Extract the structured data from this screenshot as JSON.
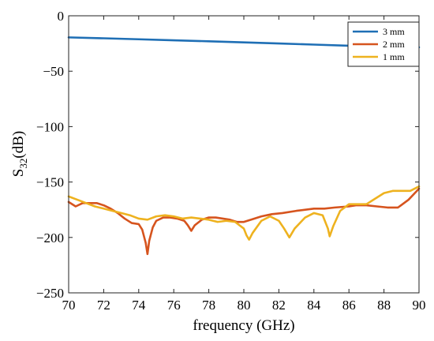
{
  "chart_data": {
    "type": "line",
    "title": "",
    "xlabel": "frequency (GHz)",
    "ylabel_main": "S",
    "ylabel_sub": "32",
    "ylabel_tail": "(dB)",
    "xlim": [
      70,
      90
    ],
    "ylim": [
      -250,
      0
    ],
    "xticks": [
      70,
      72,
      74,
      76,
      78,
      80,
      82,
      84,
      86,
      88,
      90
    ],
    "yticks": [
      0,
      -50,
      -100,
      -150,
      -200,
      -250
    ],
    "ytick_labels": [
      "0",
      "−50",
      "−100",
      "−150",
      "−200",
      "−250"
    ],
    "grid": true,
    "legend_position": "top-right",
    "series": [
      {
        "name": "3 mm",
        "color": "#1f6fb5",
        "x": [
          70,
          72,
          74,
          76,
          78,
          80,
          82,
          84,
          86,
          88,
          90
        ],
        "y": [
          -19.5,
          -20.3,
          -21.2,
          -22.1,
          -23.0,
          -24.0,
          -25.0,
          -26.0,
          -27.0,
          -27.7,
          -28.4
        ]
      },
      {
        "name": "2 mm",
        "color": "#d6541e",
        "x": [
          70,
          70.4,
          70.8,
          71.2,
          71.6,
          72.0,
          72.4,
          72.8,
          73.2,
          73.6,
          74.0,
          74.2,
          74.4,
          74.5,
          74.6,
          74.8,
          75.0,
          75.4,
          75.8,
          76.2,
          76.6,
          76.8,
          77.0,
          77.2,
          77.6,
          78.0,
          78.4,
          78.8,
          79.2,
          79.6,
          80.0,
          80.4,
          81.0,
          81.6,
          82.2,
          83.0,
          84.0,
          84.6,
          85.2,
          86.0,
          86.4,
          87.0,
          87.6,
          88.2,
          88.8,
          89.4,
          90.0
        ],
        "y": [
          -168,
          -172,
          -169,
          -169,
          -169,
          -171,
          -174,
          -178,
          -183,
          -187,
          -188,
          -193,
          -205,
          -215,
          -203,
          -191,
          -185,
          -182,
          -182,
          -183,
          -185,
          -189,
          -194,
          -189,
          -184,
          -182,
          -182,
          -183,
          -184,
          -186,
          -186,
          -184,
          -181,
          -179,
          -178,
          -176,
          -174,
          -174,
          -173,
          -172,
          -171,
          -171,
          -172,
          -173,
          -173,
          -166,
          -156
        ]
      },
      {
        "name": "1 mm",
        "color": "#eeb21f",
        "x": [
          70,
          70.5,
          71,
          71.5,
          72,
          72.5,
          73,
          73.5,
          74,
          74.5,
          75,
          75.5,
          76,
          76.5,
          77,
          77.5,
          78,
          78.5,
          79,
          79.5,
          80,
          80.15,
          80.3,
          80.5,
          81,
          81.5,
          82,
          82.3,
          82.6,
          82.9,
          83.5,
          84,
          84.5,
          84.8,
          84.9,
          85.1,
          85.5,
          86,
          86.5,
          87,
          87.5,
          88,
          88.5,
          89,
          89.5,
          90
        ],
        "y": [
          -163,
          -166,
          -169,
          -172,
          -174,
          -176,
          -178,
          -180,
          -183,
          -184,
          -181,
          -180,
          -181,
          -183,
          -182,
          -183,
          -184,
          -186,
          -185,
          -186,
          -192,
          -198,
          -202,
          -196,
          -185,
          -181,
          -185,
          -192,
          -200,
          -192,
          -182,
          -178,
          -180,
          -192,
          -199,
          -190,
          -176,
          -170,
          -170,
          -170,
          -165,
          -160,
          -158,
          -158,
          -158,
          -154
        ]
      }
    ]
  }
}
